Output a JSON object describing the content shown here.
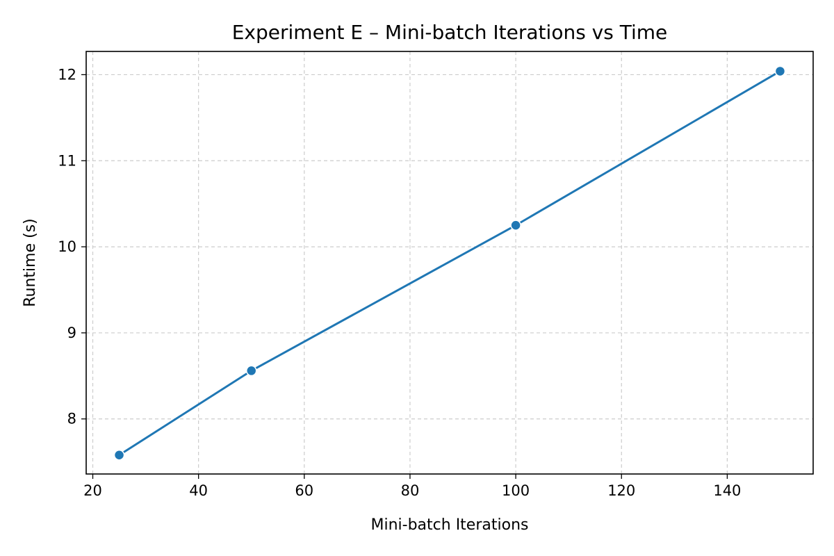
{
  "chart_data": {
    "type": "line",
    "title": "Experiment E – Mini-batch Iterations vs Time",
    "xlabel": "Mini-batch Iterations",
    "ylabel": "Runtime (s)",
    "xlim": [
      18.75,
      156.25
    ],
    "ylim": [
      7.36,
      12.27
    ],
    "xticks": [
      20,
      40,
      60,
      80,
      100,
      120,
      140
    ],
    "yticks": [
      8,
      9,
      10,
      11,
      12
    ],
    "grid": true,
    "legend": "none",
    "series": [
      {
        "color": "#1f77b4",
        "marker": "circle",
        "x": [
          25,
          50,
          100,
          150
        ],
        "y": [
          7.58,
          8.56,
          10.25,
          12.04
        ]
      }
    ]
  }
}
